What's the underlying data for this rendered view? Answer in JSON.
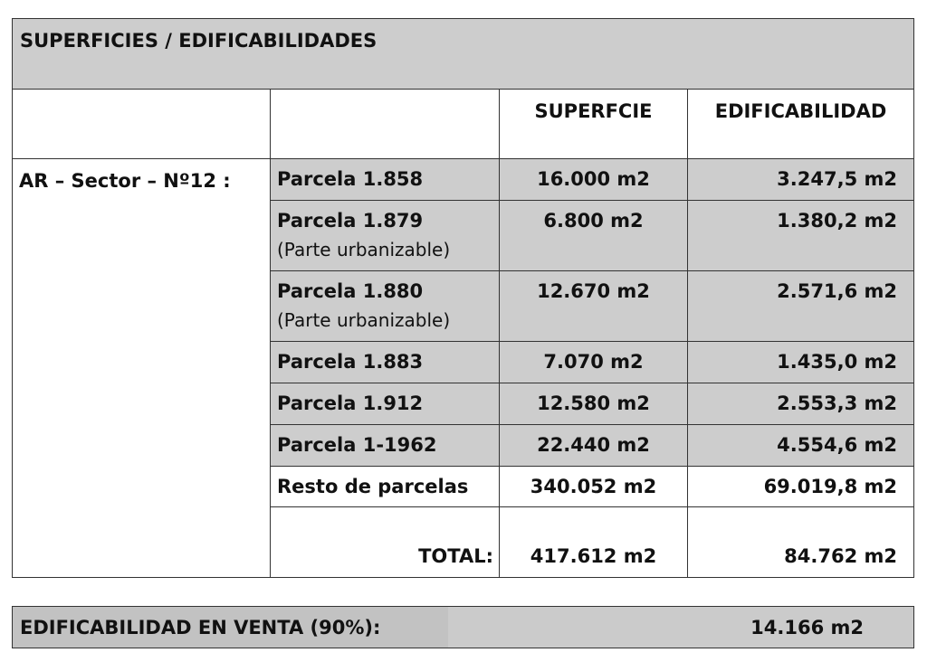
{
  "title": "SUPERFICIES / EDIFICABILIDADES",
  "headers": {
    "superficie": "SUPERFCIE",
    "edificabilidad": "EDIFICABILIDAD"
  },
  "sector": "AR – Sector – Nº12 :",
  "rows": [
    {
      "parcela": "Parcela 1.858",
      "note": "",
      "superficie": "16.000 m2",
      "edificabilidad": "3.247,5 m2"
    },
    {
      "parcela": "Parcela 1.879",
      "note": "(Parte urbanizable)",
      "superficie": "6.800 m2",
      "edificabilidad": "1.380,2 m2"
    },
    {
      "parcela": "Parcela 1.880",
      "note": "(Parte urbanizable)",
      "superficie": "12.670 m2",
      "edificabilidad": "2.571,6 m2"
    },
    {
      "parcela": "Parcela 1.883",
      "note": "",
      "superficie": "7.070 m2",
      "edificabilidad": "1.435,0 m2"
    },
    {
      "parcela": "Parcela 1.912",
      "note": "",
      "superficie": "12.580 m2",
      "edificabilidad": "2.553,3 m2"
    },
    {
      "parcela": "Parcela 1-1962",
      "note": "",
      "superficie": "22.440 m2",
      "edificabilidad": "4.554,6 m2"
    },
    {
      "parcela": "Resto de parcelas",
      "note": "",
      "superficie": "340.052 m2",
      "edificabilidad": "69.019,8 m2"
    }
  ],
  "total": {
    "label": "TOTAL:",
    "superficie": "417.612 m2",
    "edificabilidad": "84.762 m2"
  },
  "venta": {
    "label": "EDIFICABILIDAD EN VENTA (90%):",
    "value": "14.166 m2"
  }
}
